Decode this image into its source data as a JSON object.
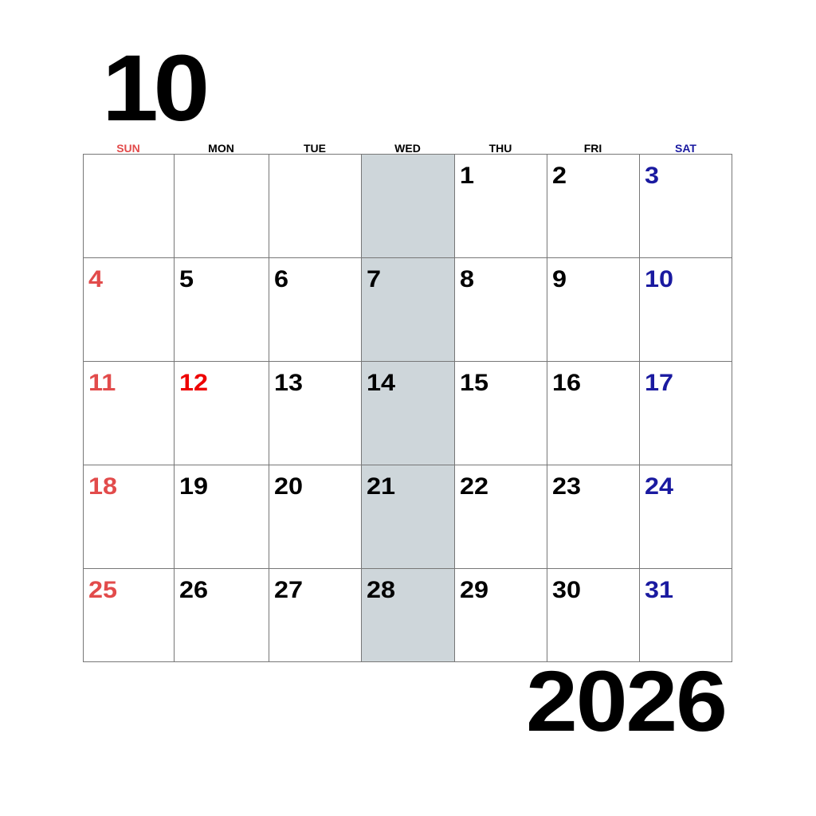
{
  "calendar": {
    "month": "10",
    "year": "2026",
    "weekdays": [
      {
        "label": "SUN",
        "color": "#e24b4b"
      },
      {
        "label": "MON",
        "color": "#000000"
      },
      {
        "label": "TUE",
        "color": "#000000"
      },
      {
        "label": "WED",
        "color": "#000000"
      },
      {
        "label": "THU",
        "color": "#000000"
      },
      {
        "label": "FRI",
        "color": "#000000"
      },
      {
        "label": "SAT",
        "color": "#1a1aa0"
      }
    ],
    "highlight_column": 3,
    "highlight_color": "#ced6da",
    "weeks": [
      [
        {
          "day": "",
          "color": "#000000"
        },
        {
          "day": "",
          "color": "#000000"
        },
        {
          "day": "",
          "color": "#000000"
        },
        {
          "day": "",
          "color": "#000000"
        },
        {
          "day": "1",
          "color": "#000000"
        },
        {
          "day": "2",
          "color": "#000000"
        },
        {
          "day": "3",
          "color": "#1a1aa0"
        }
      ],
      [
        {
          "day": "4",
          "color": "#e24b4b"
        },
        {
          "day": "5",
          "color": "#000000"
        },
        {
          "day": "6",
          "color": "#000000"
        },
        {
          "day": "7",
          "color": "#000000"
        },
        {
          "day": "8",
          "color": "#000000"
        },
        {
          "day": "9",
          "color": "#000000"
        },
        {
          "day": "10",
          "color": "#1a1aa0"
        }
      ],
      [
        {
          "day": "11",
          "color": "#e24b4b"
        },
        {
          "day": "12",
          "color": "#ee0000"
        },
        {
          "day": "13",
          "color": "#000000"
        },
        {
          "day": "14",
          "color": "#000000"
        },
        {
          "day": "15",
          "color": "#000000"
        },
        {
          "day": "16",
          "color": "#000000"
        },
        {
          "day": "17",
          "color": "#1a1aa0"
        }
      ],
      [
        {
          "day": "18",
          "color": "#e24b4b"
        },
        {
          "day": "19",
          "color": "#000000"
        },
        {
          "day": "20",
          "color": "#000000"
        },
        {
          "day": "21",
          "color": "#000000"
        },
        {
          "day": "22",
          "color": "#000000"
        },
        {
          "day": "23",
          "color": "#000000"
        },
        {
          "day": "24",
          "color": "#1a1aa0"
        }
      ],
      [
        {
          "day": "25",
          "color": "#e24b4b"
        },
        {
          "day": "26",
          "color": "#000000"
        },
        {
          "day": "27",
          "color": "#000000"
        },
        {
          "day": "28",
          "color": "#000000"
        },
        {
          "day": "29",
          "color": "#000000"
        },
        {
          "day": "30",
          "color": "#000000"
        },
        {
          "day": "31",
          "color": "#1a1aa0"
        }
      ]
    ]
  }
}
